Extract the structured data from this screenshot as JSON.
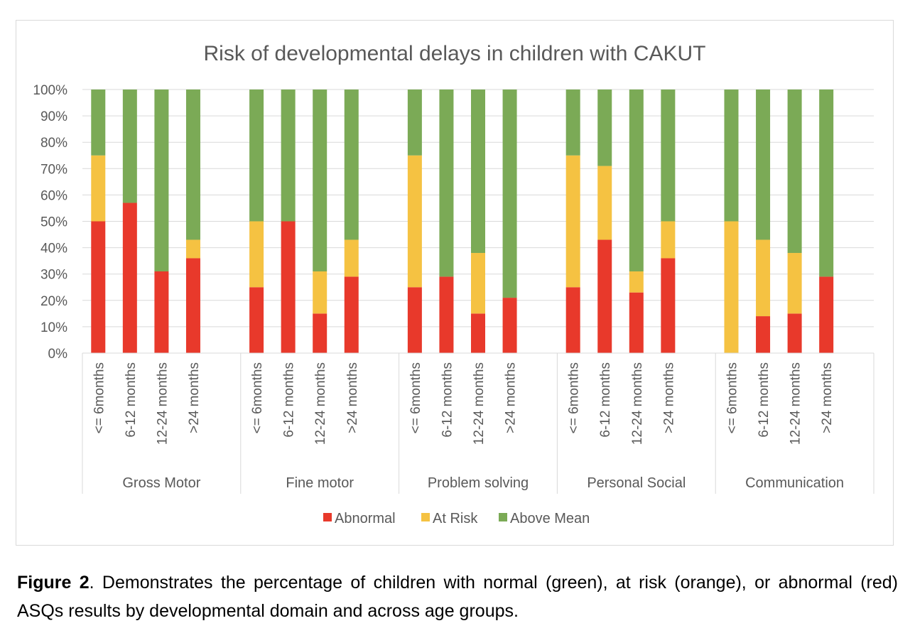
{
  "chart_data": {
    "type": "bar",
    "stacked": true,
    "title": "Risk of developmental delays in children with CAKUT",
    "ylim": [
      0,
      100
    ],
    "y_ticks": [
      "0%",
      "10%",
      "20%",
      "30%",
      "40%",
      "50%",
      "60%",
      "70%",
      "80%",
      "90%",
      "100%"
    ],
    "grid": true,
    "legend_position": "bottom",
    "groups": [
      "Gross Motor",
      "Fine motor",
      "Problem solving",
      "Personal Social",
      "Communication"
    ],
    "categories": [
      "<= 6months",
      "6-12 months",
      "12-24 months",
      ">24 months"
    ],
    "series": [
      {
        "name": "Abnormal",
        "color": "#e8392b",
        "values": [
          [
            50,
            57,
            31,
            36
          ],
          [
            25,
            50,
            15,
            29
          ],
          [
            25,
            29,
            15,
            21
          ],
          [
            25,
            43,
            23,
            36
          ],
          [
            0,
            14,
            15,
            29
          ]
        ]
      },
      {
        "name": "At Risk",
        "color": "#f5c242",
        "values": [
          [
            25,
            0,
            0,
            7
          ],
          [
            25,
            0,
            16,
            14
          ],
          [
            50,
            0,
            23,
            0
          ],
          [
            50,
            28,
            8,
            14
          ],
          [
            50,
            29,
            23,
            0
          ]
        ]
      },
      {
        "name": "Above Mean",
        "color": "#7baa56",
        "values": [
          [
            25,
            43,
            69,
            57
          ],
          [
            50,
            50,
            69,
            57
          ],
          [
            25,
            71,
            62,
            79
          ],
          [
            25,
            29,
            69,
            50
          ],
          [
            50,
            57,
            62,
            71
          ]
        ]
      }
    ]
  },
  "caption": {
    "label": "Figure 2",
    "text": ". Demonstrates the percentage of children with normal (green), at risk (orange), or abnormal (red) ASQs results by developmental domain and across age groups."
  }
}
